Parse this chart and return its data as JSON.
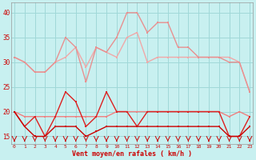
{
  "background_color": "#c8f0f0",
  "grid_color": "#a0d8d8",
  "xlabel": "Vent moyen/en rafales ( km/h )",
  "xlabel_color": "#cc0000",
  "yticks": [
    15,
    20,
    25,
    30,
    35,
    40
  ],
  "xticks": [
    0,
    1,
    2,
    3,
    4,
    5,
    6,
    7,
    8,
    9,
    10,
    11,
    12,
    13,
    14,
    15,
    16,
    17,
    18,
    19,
    20,
    21,
    22,
    23
  ],
  "ylim": [
    13.5,
    42
  ],
  "xlim": [
    -0.3,
    23.3
  ],
  "lines": [
    {
      "label": "gust_light1",
      "y": [
        31,
        30,
        28,
        28,
        30,
        31,
        33,
        29,
        33,
        32,
        31,
        35,
        36,
        30,
        31,
        31,
        31,
        31,
        31,
        31,
        31,
        31,
        30,
        24
      ],
      "color": "#f0a8a8",
      "lw": 1.0,
      "marker": "s",
      "ms": 2.0,
      "zorder": 2
    },
    {
      "label": "gust_light2",
      "y": [
        31,
        30,
        28,
        28,
        30,
        35,
        33,
        26,
        33,
        32,
        35,
        40,
        40,
        36,
        38,
        38,
        33,
        33,
        31,
        31,
        31,
        30,
        30,
        24
      ],
      "color": "#e89090",
      "lw": 1.0,
      "marker": "s",
      "ms": 2.0,
      "zorder": 3
    },
    {
      "label": "mean_light",
      "y": [
        20,
        19,
        19,
        19,
        19,
        19,
        19,
        19,
        19,
        19,
        20,
        20,
        20,
        20,
        20,
        20,
        20,
        20,
        20,
        20,
        20,
        19,
        20,
        19
      ],
      "color": "#f08080",
      "lw": 1.0,
      "marker": "s",
      "ms": 2.0,
      "zorder": 4
    },
    {
      "label": "mean_dark1",
      "y": [
        20,
        17,
        19,
        15,
        19,
        24,
        22,
        17,
        19,
        24,
        20,
        20,
        17,
        20,
        20,
        20,
        20,
        20,
        20,
        20,
        20,
        15,
        15,
        19
      ],
      "color": "#dd2020",
      "lw": 1.0,
      "marker": "s",
      "ms": 2.0,
      "zorder": 5
    },
    {
      "label": "mean_dark2",
      "y": [
        20,
        17,
        15,
        15,
        17,
        17,
        17,
        15,
        16,
        17,
        17,
        17,
        17,
        17,
        17,
        17,
        17,
        17,
        17,
        17,
        17,
        15,
        15,
        17
      ],
      "color": "#cc0000",
      "lw": 1.0,
      "marker": "s",
      "ms": 2.0,
      "zorder": 6
    }
  ]
}
